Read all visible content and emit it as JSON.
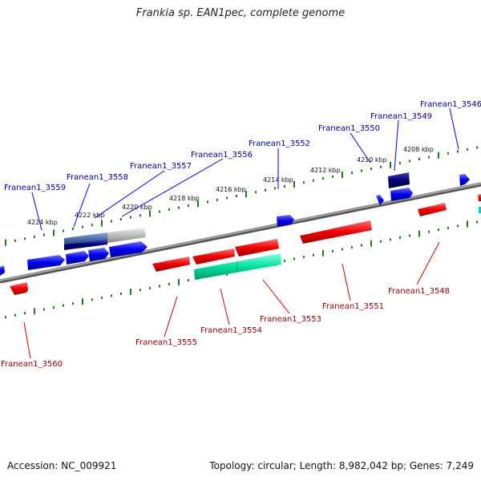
{
  "title": "Frankia sp. EAN1pec, complete genome",
  "footer": {
    "accession": "Accession: NC_009921",
    "summary": "Topology: circular; Length: 8,982,042 bp; Genes: 7,249"
  },
  "colors": {
    "forward_gene": "#0000ee",
    "reverse_gene": "#ee0000",
    "rna_gene": "#00dd99",
    "highlight_gene": "#000077",
    "axis_ticks": "#227722",
    "backbone": "#888888",
    "label_forward": "#00008b",
    "label_reverse": "#8b0000"
  },
  "kbp_labels": [
    "4224 kbp",
    "4222 kbp",
    "4220 kbp",
    "4218 kbp",
    "4216 kbp",
    "4214 kbp",
    "4212 kbp",
    "4210 kbp",
    "4208 kbp"
  ],
  "forward_labels": [
    "Franean1_3559",
    "Franean1_3558",
    "Franean1_3557",
    "Franean1_3556",
    "Franean1_3552",
    "Franean1_3550",
    "Franean1_3549",
    "Franean1_3546"
  ],
  "reverse_labels": [
    "Franean1_3560",
    "Franean1_3555",
    "Franean1_3554",
    "Franean1_3553",
    "Franean1_3551",
    "Franean1_3548"
  ]
}
